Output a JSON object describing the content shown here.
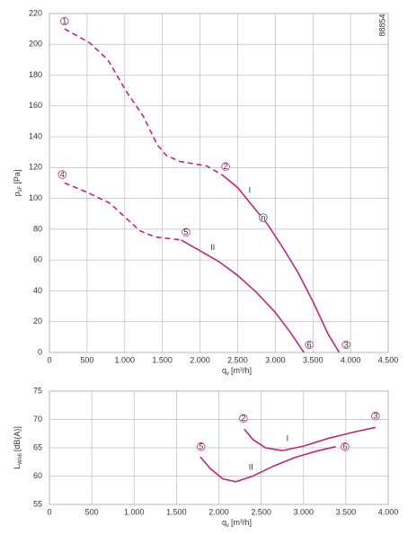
{
  "chart_data": [
    {
      "type": "line",
      "id_text": "88854",
      "xlabel": {
        "main": "q",
        "sub": "v",
        "unit": "[m³/h]"
      },
      "ylabel": {
        "main": "p",
        "sub": "sF",
        "unit": "[Pa]"
      },
      "xlim": [
        0,
        4500
      ],
      "ylim": [
        0,
        220
      ],
      "grid": true,
      "xticks": [
        0,
        500,
        {
          "value": 1000,
          "label": "1.000"
        },
        {
          "value": 1500,
          "label": "1.500"
        },
        {
          "value": 2000,
          "label": "2.000"
        },
        {
          "value": 2500,
          "label": "2.500"
        },
        {
          "value": 3000,
          "label": "3.000"
        },
        {
          "value": 3500,
          "label": "3.500"
        },
        {
          "value": 4000,
          "label": "4.000"
        },
        {
          "value": 4500,
          "label": "4.500"
        }
      ],
      "yticks": [
        0,
        20,
        40,
        60,
        80,
        100,
        120,
        140,
        160,
        180,
        200,
        220
      ],
      "series": [
        {
          "linestyle": "dashed",
          "color": "#c0267e",
          "x": [
            200,
            535,
            775,
            1015,
            1250,
            1430,
            1550,
            1730,
            2090,
            2300
          ],
          "values": [
            210,
            201,
            190,
            170,
            153,
            135,
            128,
            124,
            121,
            115
          ]
        },
        {
          "name": "I",
          "name_at": [
            2660,
            105
          ],
          "linestyle": "solid",
          "color": "#c0267e",
          "x": [
            2300,
            2500,
            2700,
            2900,
            3100,
            3300,
            3500,
            3700,
            3850
          ],
          "values": [
            115,
            107,
            95,
            83,
            68,
            52,
            33,
            12,
            0
          ]
        },
        {
          "linestyle": "dashed",
          "color": "#c0267e",
          "x": [
            200,
            500,
            800,
            1000,
            1200,
            1400,
            1750
          ],
          "values": [
            110,
            104,
            97,
            88,
            79,
            75,
            73
          ]
        },
        {
          "name": "II",
          "name_at": [
            2170,
            68
          ],
          "linestyle": "solid",
          "color": "#c0267e",
          "x": [
            1750,
            2000,
            2250,
            2500,
            2750,
            3000,
            3200,
            3380
          ],
          "values": [
            73,
            66,
            59,
            50,
            39,
            26,
            13,
            0
          ]
        }
      ],
      "annotations": [
        {
          "text": "1",
          "x": 200,
          "y": 215,
          "color": "#c0267e"
        },
        {
          "text": "2",
          "x": 2340,
          "y": 120.7,
          "color": "#c0267e"
        },
        {
          "text": "3",
          "x": 3940,
          "y": 5,
          "color": "#c0267e"
        },
        {
          "text": "4",
          "x": 170,
          "y": 115.5,
          "color": "#c0267e"
        },
        {
          "text": "5",
          "x": 1815,
          "y": 78,
          "color": "#c0267e"
        },
        {
          "text": "6",
          "x": 3450,
          "y": 5,
          "color": "#c0267e"
        },
        {
          "text": "n",
          "x": 2840,
          "y": 87.5,
          "color": "#444444"
        }
      ]
    },
    {
      "type": "line",
      "xlabel": {
        "main": "q",
        "sub": "v",
        "unit": "[m³/h]"
      },
      "ylabel": {
        "main": "L",
        "sub": "WA6",
        "unit": "[dB(A)]"
      },
      "xlim": [
        0,
        4000
      ],
      "ylim": [
        55,
        75
      ],
      "grid": true,
      "xticks": [
        0,
        500,
        {
          "value": 1000,
          "label": "1.000"
        },
        {
          "value": 1500,
          "label": "1.500"
        },
        {
          "value": 2000,
          "label": "2.000"
        },
        {
          "value": 2500,
          "label": "2.500"
        },
        {
          "value": 3000,
          "label": "3.000"
        },
        {
          "value": 3500,
          "label": "3.500"
        },
        {
          "value": 4000,
          "label": "4.000"
        }
      ],
      "yticks": [
        55,
        60,
        65,
        70,
        75
      ],
      "series": [
        {
          "name": "I",
          "name_at": [
            2810,
            66.6
          ],
          "linestyle": "solid",
          "color": "#c0267e",
          "x": [
            2300,
            2400,
            2550,
            2750,
            3000,
            3300,
            3600,
            3850
          ],
          "values": [
            68.3,
            66.5,
            65.0,
            64.5,
            65.3,
            66.7,
            67.8,
            68.6
          ]
        },
        {
          "name": "II",
          "name_at": [
            2380,
            61.5
          ],
          "linestyle": "solid",
          "color": "#c0267e",
          "x": [
            1780,
            1900,
            2050,
            2200,
            2400,
            2650,
            2900,
            3150,
            3380
          ],
          "values": [
            63.4,
            61.3,
            59.5,
            59.0,
            60.0,
            61.8,
            63.3,
            64.4,
            65.2
          ]
        }
      ],
      "annotations": [
        {
          "text": "2",
          "x": 2290,
          "y": 70.2,
          "color": "#c0267e"
        },
        {
          "text": "3",
          "x": 3850,
          "y": 70.6,
          "color": "#c0267e"
        },
        {
          "text": "5",
          "x": 1790,
          "y": 65.2,
          "color": "#c0267e"
        },
        {
          "text": "6",
          "x": 3490,
          "y": 65.2,
          "color": "#c0267e"
        }
      ]
    }
  ]
}
